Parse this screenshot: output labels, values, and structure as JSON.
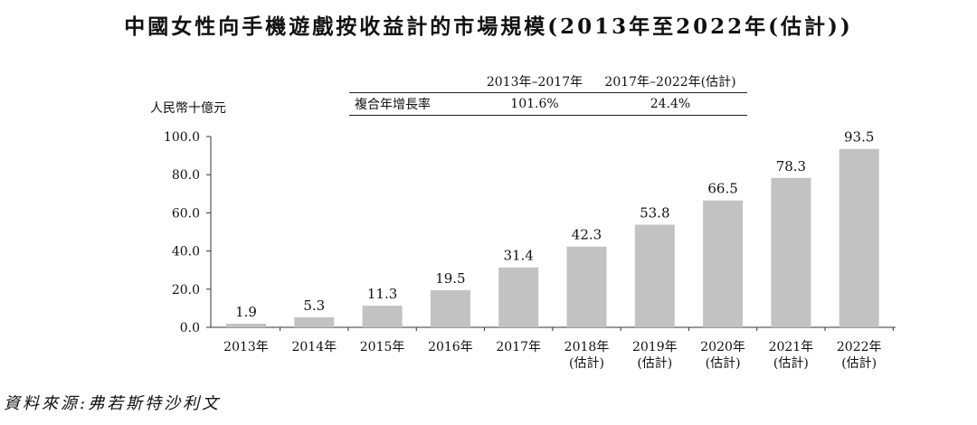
{
  "title": "中國女性向手機遊戲按收益計的市場規模(2013年至2022年(估計))",
  "source": "資料來源:弗若斯特沙利文",
  "cagr_table": {
    "headers": [
      "",
      "2013年–2017年",
      "2017年–2022年(估計)"
    ],
    "row": [
      "複合年增長率",
      "101.6%",
      "24.4%"
    ]
  },
  "colors": {
    "bar": "#c2c2c2",
    "axis": "#333333",
    "text": "#111111"
  },
  "chart_data": {
    "type": "bar",
    "title": "中國女性向手機遊戲按收益計的市場規模(2013年至2022年(估計))",
    "ylabel": "人民幣十億元",
    "xlabel": "",
    "ylim": [
      0,
      100
    ],
    "yticks": [
      "0.0",
      "20.0",
      "40.0",
      "60.0",
      "80.0",
      "100.0"
    ],
    "categories": [
      [
        "2013年"
      ],
      [
        "2014年"
      ],
      [
        "2015年"
      ],
      [
        "2016年"
      ],
      [
        "2017年"
      ],
      [
        "2018年",
        "(估計)"
      ],
      [
        "2019年",
        "(估計)"
      ],
      [
        "2020年",
        "(估計)"
      ],
      [
        "2021年",
        "(估計)"
      ],
      [
        "2022年",
        "(估計)"
      ]
    ],
    "values": [
      1.9,
      5.3,
      11.3,
      19.5,
      31.4,
      42.3,
      53.8,
      66.5,
      78.3,
      93.5
    ],
    "value_labels": [
      "1.9",
      "5.3",
      "11.3",
      "19.5",
      "31.4",
      "42.3",
      "53.8",
      "66.5",
      "78.3",
      "93.5"
    ]
  }
}
